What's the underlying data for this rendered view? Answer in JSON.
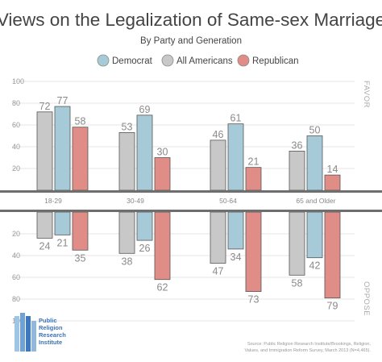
{
  "chart_data": {
    "type": "bar",
    "title": "Views on the Legalization of Same-sex Marriage",
    "subtitle": "By Party and Generation",
    "categories": [
      "18-29",
      "30-49",
      "50-64",
      "65 and Older"
    ],
    "series": [
      {
        "name": "All Americans",
        "color": "#c8c8c8",
        "favor": [
          72,
          53,
          46,
          36
        ],
        "oppose": [
          24,
          38,
          47,
          58
        ]
      },
      {
        "name": "Democrat",
        "color": "#a6cad8",
        "favor": [
          77,
          69,
          61,
          50
        ],
        "oppose": [
          21,
          26,
          34,
          42
        ]
      },
      {
        "name": "Republican",
        "color": "#e08d87",
        "favor": [
          58,
          30,
          21,
          14
        ],
        "oppose": [
          35,
          62,
          73,
          79
        ]
      }
    ],
    "legend_order": [
      "Democrat",
      "All Americans",
      "Republican"
    ],
    "legend_position": "top",
    "favor_label": "FAVOR",
    "oppose_label": "OPPOSE",
    "favor_ticks": [
      "100",
      "80",
      "60",
      "40",
      "20"
    ],
    "oppose_ticks": [
      "20",
      "40",
      "60",
      "80",
      "100"
    ],
    "ylim": [
      0,
      100
    ],
    "grid": true
  },
  "logo": {
    "lines": [
      "Public",
      "Religion",
      "Research",
      "Institute"
    ]
  },
  "source": {
    "lines": [
      "Source: Public Religion Research Institute/Brookings, Religion,",
      "Values, and Immigration Reform Survey, March 2013 (N=4,465)."
    ]
  },
  "colors": {
    "democrat": "#a6cad8",
    "all_americans": "#c8c8c8",
    "republican": "#e08d87",
    "band": "#6e6e6e"
  }
}
